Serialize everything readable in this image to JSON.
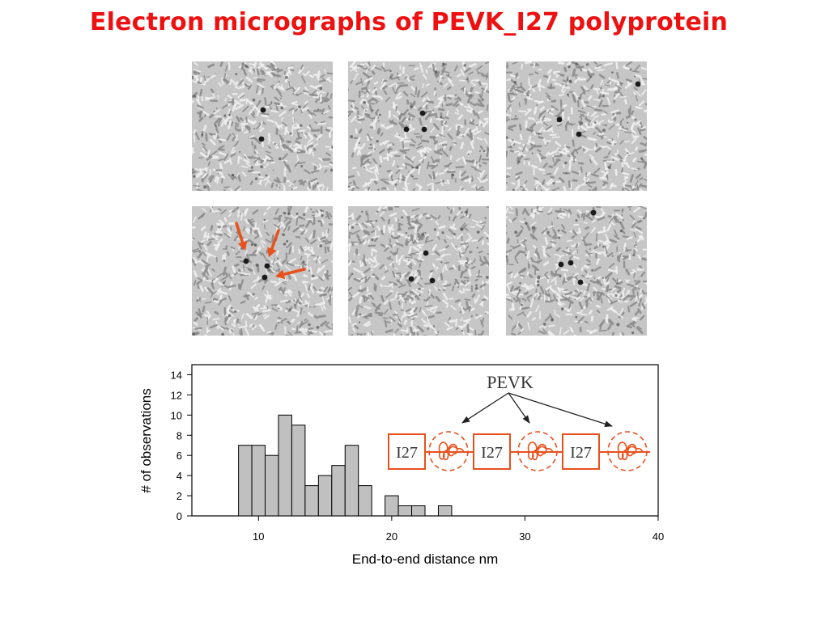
{
  "slide": {
    "title": "Electron micrographs of PEVK_I27 polyprotein"
  },
  "micrographs": [
    {
      "id": "top-left",
      "annotated": false
    },
    {
      "id": "top-middle",
      "annotated": false
    },
    {
      "id": "top-right",
      "annotated": false
    },
    {
      "id": "bottom-left",
      "annotated": true
    },
    {
      "id": "bottom-middle",
      "annotated": false
    },
    {
      "id": "bottom-right",
      "annotated": false
    }
  ],
  "colors": {
    "title": "#ee1111",
    "annotation_arrow": "#e8501c",
    "bar_fill": "#c0c0c0",
    "diagram": "#e8501c"
  },
  "chart_data": {
    "type": "bar",
    "xlabel": "End-to-end distance nm",
    "ylabel": "# of observations",
    "xlim": [
      5,
      40
    ],
    "ylim": [
      0,
      15
    ],
    "xticks": [
      10,
      20,
      30,
      40
    ],
    "yticks": [
      0,
      2,
      4,
      6,
      8,
      10,
      12,
      14
    ],
    "bin_width": 1,
    "bin_starts": [
      8.5,
      9.5,
      10.5,
      11.5,
      12.5,
      13.5,
      14.5,
      15.5,
      16.5,
      17.5,
      19.5,
      20.5,
      21.5,
      23.5
    ],
    "values": [
      7,
      7,
      6,
      10,
      9,
      3,
      4,
      5,
      7,
      3,
      2,
      1,
      1,
      1
    ],
    "grid": false,
    "inset_diagram": {
      "label": "PEVK",
      "domains": [
        "I27",
        "I27",
        "I27"
      ]
    }
  }
}
